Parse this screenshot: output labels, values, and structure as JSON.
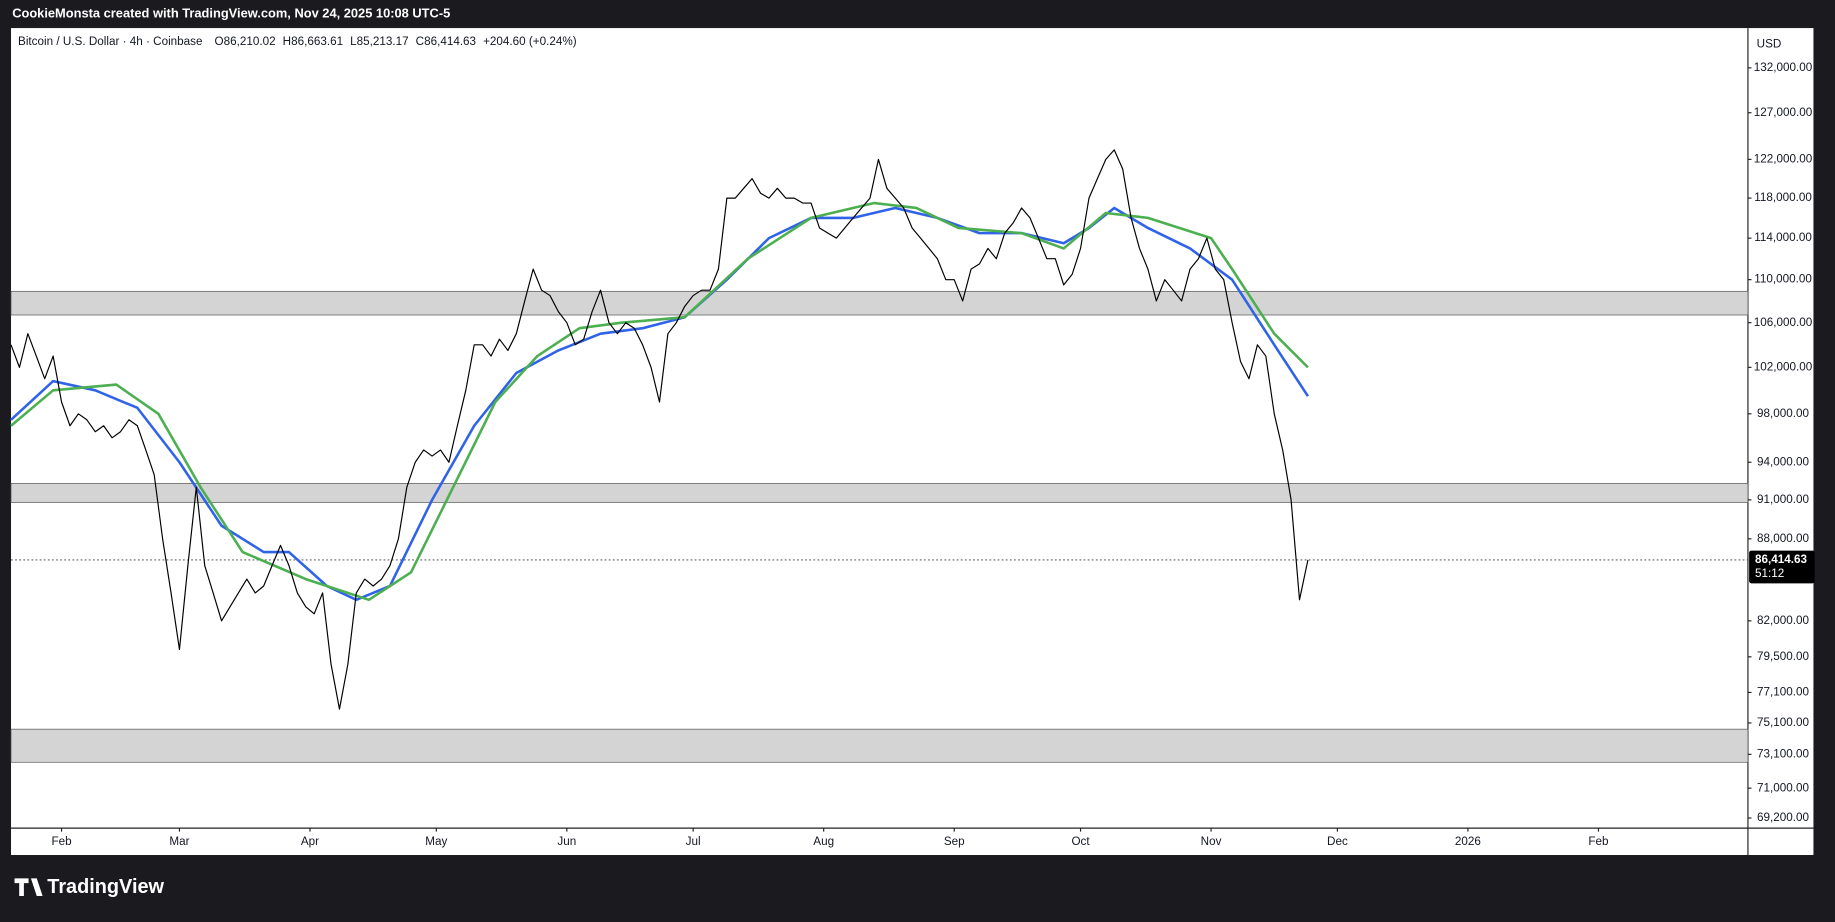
{
  "header": {
    "credit": "CookieMonsta created with TradingView.com, Nov 24, 2025 10:08 UTC-5"
  },
  "footer": {
    "brand": "TradingView"
  },
  "chart_data": {
    "type": "line",
    "title": "Bitcoin / U.S. Dollar · 4h · Coinbase",
    "ohlc": [
      "O86,210.02",
      "H86,663.61",
      "L85,213.17",
      "C86,414.63",
      "+204.60 (+0.24%)"
    ],
    "currency": "USD",
    "log_scale": true,
    "grid": false,
    "xlim": [
      0,
      412.5
    ],
    "xticks": [
      {
        "value": 12,
        "label": "Feb"
      },
      {
        "value": 40,
        "label": "Mar"
      },
      {
        "value": 71,
        "label": "Apr"
      },
      {
        "value": 101,
        "label": "May"
      },
      {
        "value": 132,
        "label": "Jun"
      },
      {
        "value": 162,
        "label": "Jul"
      },
      {
        "value": 193,
        "label": "Aug"
      },
      {
        "value": 224,
        "label": "Sep"
      },
      {
        "value": 254,
        "label": "Oct"
      },
      {
        "value": 285,
        "label": "Nov"
      },
      {
        "value": 315,
        "label": "Dec"
      },
      {
        "value": 346,
        "label": "2026"
      },
      {
        "value": 377,
        "label": "Feb"
      }
    ],
    "ylim": [
      68600,
      136600
    ],
    "yticks": [
      {
        "value": 132000,
        "label": "132,000.00"
      },
      {
        "value": 127000,
        "label": "127,000.00"
      },
      {
        "value": 122000,
        "label": "122,000.00"
      },
      {
        "value": 118000,
        "label": "118,000.00"
      },
      {
        "value": 114000,
        "label": "114,000.00"
      },
      {
        "value": 110000,
        "label": "110,000.00"
      },
      {
        "value": 106000,
        "label": "106,000.00"
      },
      {
        "value": 102000,
        "label": "102,000.00"
      },
      {
        "value": 98000,
        "label": "98,000.00"
      },
      {
        "value": 94000,
        "label": "94,000.00"
      },
      {
        "value": 91000,
        "label": "91,000.00"
      },
      {
        "value": 88000,
        "label": "88,000.00"
      },
      {
        "value": 82000,
        "label": "82,000.00"
      },
      {
        "value": 79500,
        "label": "79,500.00"
      },
      {
        "value": 77100,
        "label": "77,100.00"
      },
      {
        "value": 75100,
        "label": "75,100.00"
      },
      {
        "value": 73100,
        "label": "73,100.00"
      },
      {
        "value": 71000,
        "label": "71,000.00"
      },
      {
        "value": 69200,
        "label": "69,200.00"
      }
    ],
    "zones": [
      [
        106700,
        108900
      ],
      [
        90800,
        92300
      ],
      [
        72600,
        74700
      ]
    ],
    "zone_color": "#d4d4d4",
    "last_price": {
      "value": 86414.63,
      "label": "86,414.63"
    },
    "countdown": "51:12",
    "series": [
      {
        "color": "#000000",
        "width": 1,
        "x": [
          0,
          2,
          4,
          6,
          8,
          10,
          12,
          14,
          16,
          18,
          20,
          22,
          24,
          26,
          28,
          30,
          32,
          34,
          36,
          38,
          40,
          42,
          44,
          46,
          48,
          50,
          52,
          54,
          56,
          58,
          60,
          62,
          64,
          66,
          68,
          70,
          72,
          74,
          76,
          78,
          80,
          82,
          84,
          86,
          88,
          90,
          92,
          94,
          96,
          98,
          100,
          102,
          104,
          106,
          108,
          110,
          112,
          114,
          116,
          118,
          120,
          122,
          124,
          126,
          128,
          130,
          132,
          134,
          136,
          138,
          140,
          142,
          144,
          146,
          148,
          150,
          152,
          154,
          156,
          158,
          160,
          162,
          164,
          166,
          168,
          170,
          172,
          174,
          176,
          178,
          180,
          182,
          184,
          186,
          188,
          190,
          192,
          194,
          196,
          198,
          200,
          202,
          204,
          206,
          208,
          210,
          212,
          214,
          216,
          218,
          220,
          222,
          224,
          226,
          228,
          230,
          232,
          234,
          236,
          238,
          240,
          242,
          244,
          246,
          248,
          250,
          252,
          254,
          256,
          258,
          260,
          262,
          264,
          266,
          268,
          270,
          272,
          274,
          276,
          278,
          280,
          282,
          284,
          286,
          288,
          290,
          292,
          294,
          296,
          298,
          300,
          302,
          304,
          306,
          308
        ],
        "values": [
          104000,
          102000,
          105000,
          103000,
          101000,
          103000,
          99000,
          97000,
          98000,
          97500,
          96500,
          97000,
          96000,
          96500,
          97500,
          97000,
          95000,
          93000,
          88000,
          84000,
          80000,
          86000,
          92000,
          86000,
          84000,
          82000,
          83000,
          84000,
          85000,
          84000,
          84500,
          86000,
          87500,
          86000,
          84000,
          83000,
          82500,
          84000,
          79000,
          76000,
          79000,
          84000,
          85000,
          84500,
          85000,
          86000,
          88000,
          92000,
          94000,
          95000,
          94500,
          95000,
          94000,
          97000,
          100000,
          104000,
          104000,
          103000,
          104500,
          103500,
          105000,
          108000,
          111000,
          109000,
          108500,
          107000,
          106000,
          104000,
          104500,
          107000,
          109000,
          106000,
          105000,
          106000,
          105500,
          104000,
          102000,
          99000,
          105000,
          106000,
          107500,
          108500,
          109000,
          109000,
          111000,
          118000,
          118000,
          119000,
          120000,
          118500,
          118000,
          119000,
          118000,
          118000,
          117500,
          117500,
          115000,
          114500,
          114000,
          115000,
          116000,
          117000,
          118000,
          122000,
          119000,
          118000,
          117000,
          115000,
          114000,
          113000,
          112000,
          110000,
          110000,
          108000,
          111000,
          111500,
          113000,
          112000,
          114500,
          115500,
          117000,
          116000,
          114000,
          112000,
          112000,
          109500,
          110500,
          113000,
          118000,
          120000,
          122000,
          123000,
          121000,
          116000,
          113000,
          111000,
          108000,
          110000,
          109000,
          108000,
          111000,
          112000,
          114000,
          111000,
          110000,
          106000,
          102500,
          101000,
          104000,
          103000,
          98000,
          95000,
          91000,
          83500,
          86414.63
        ]
      },
      {
        "color": "#2f63e8",
        "width": 2.2,
        "x": [
          0,
          10,
          20,
          30,
          40,
          50,
          60,
          66,
          75,
          82,
          90,
          100,
          110,
          120,
          130,
          140,
          150,
          160,
          170,
          180,
          190,
          200,
          210,
          220,
          230,
          240,
          250,
          256,
          262,
          270,
          280,
          290,
          300,
          308
        ],
        "values": [
          97500,
          100800,
          100000,
          98500,
          94000,
          89000,
          87000,
          87000,
          84500,
          83500,
          84500,
          91000,
          97000,
          101500,
          103500,
          105000,
          105500,
          106500,
          110000,
          114000,
          116000,
          116000,
          117000,
          116000,
          114500,
          114500,
          113500,
          115000,
          117000,
          115000,
          113000,
          110000,
          104000,
          99500
        ]
      },
      {
        "color": "#4caf50",
        "width": 2.2,
        "x": [
          0,
          10,
          25,
          35,
          45,
          55,
          70,
          85,
          95,
          105,
          115,
          125,
          135,
          145,
          160,
          175,
          190,
          205,
          215,
          225,
          240,
          250,
          260,
          270,
          285,
          290,
          300,
          308
        ],
        "values": [
          97000,
          100000,
          100500,
          98000,
          92000,
          87000,
          85000,
          83500,
          85500,
          92000,
          99000,
          103000,
          105500,
          106000,
          106500,
          112000,
          116000,
          117500,
          117000,
          115000,
          114500,
          113000,
          116500,
          116000,
          114000,
          111000,
          105000,
          102000
        ]
      }
    ]
  }
}
